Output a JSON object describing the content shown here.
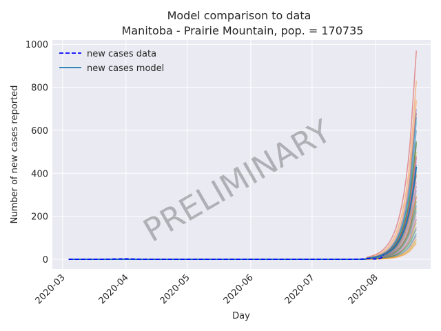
{
  "chart_data": {
    "type": "line",
    "title": "Model comparison to data",
    "subtitle": "Manitoba - Prairie Mountain, pop. = 170735",
    "xlabel": "Day",
    "ylabel": "Number of new cases reported",
    "x_ticks": [
      "2020-03",
      "2020-04",
      "2020-05",
      "2020-06",
      "2020-07",
      "2020-08"
    ],
    "y_ticks": [
      "0",
      "200",
      "400",
      "600",
      "800",
      "1000"
    ],
    "xlim": [
      "2020-02-25",
      "2020-08-28"
    ],
    "ylim": [
      -45,
      1020
    ],
    "grid": true,
    "legend_placement": "top-left",
    "legend": [
      {
        "label": "new cases data",
        "style": "dashed",
        "color": "#0000ff"
      },
      {
        "label": "new cases model",
        "style": "solid",
        "color": "#1f77b4"
      }
    ],
    "watermark": "PRELIMINARY",
    "model_start": "2020-03-04",
    "model_end": "2020-08-21",
    "data_series": {
      "name": "new cases data",
      "x": [
        "2020-03-04",
        "2020-03-10",
        "2020-03-20",
        "2020-03-31",
        "2020-04-10",
        "2020-05-01",
        "2020-06-01",
        "2020-07-01",
        "2020-07-20",
        "2020-07-25",
        "2020-07-28",
        "2020-08-01",
        "2020-08-02",
        "2020-08-03",
        "2020-08-04",
        "2020-08-05"
      ],
      "values": [
        0,
        0,
        0,
        2,
        0,
        0,
        0,
        0,
        0,
        1,
        3,
        1,
        5,
        3,
        8,
        20
      ]
    },
    "model_final_values": [
      970,
      830,
      740,
      700,
      680,
      660,
      640,
      630,
      600,
      550,
      545,
      540,
      530,
      500,
      480,
      470,
      455,
      440,
      430,
      410,
      400,
      390,
      360,
      340,
      320,
      300,
      290,
      270,
      250,
      240,
      230,
      220,
      200,
      185,
      170,
      150,
      140,
      120,
      110,
      95,
      85,
      75
    ]
  }
}
